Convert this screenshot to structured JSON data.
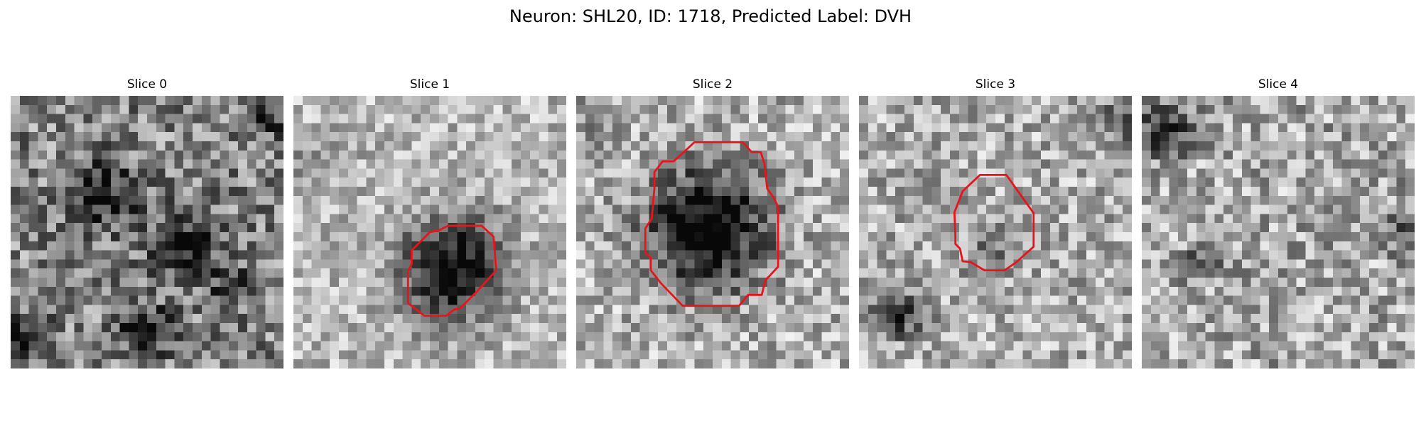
{
  "figure": {
    "title": "Neuron: SHL20, ID: 1718, Predicted Label: DVH"
  },
  "colors": {
    "background": "#ffffff",
    "roi_outline": "#e8141c",
    "colormap": "gray"
  },
  "slices": [
    {
      "title": "Slice 0",
      "has_roi_outline": false
    },
    {
      "title": "Slice 1",
      "has_roi_outline": true
    },
    {
      "title": "Slice 2",
      "has_roi_outline": true
    },
    {
      "title": "Slice 3",
      "has_roi_outline": true
    },
    {
      "title": "Slice 4",
      "has_roi_outline": false
    }
  ]
}
